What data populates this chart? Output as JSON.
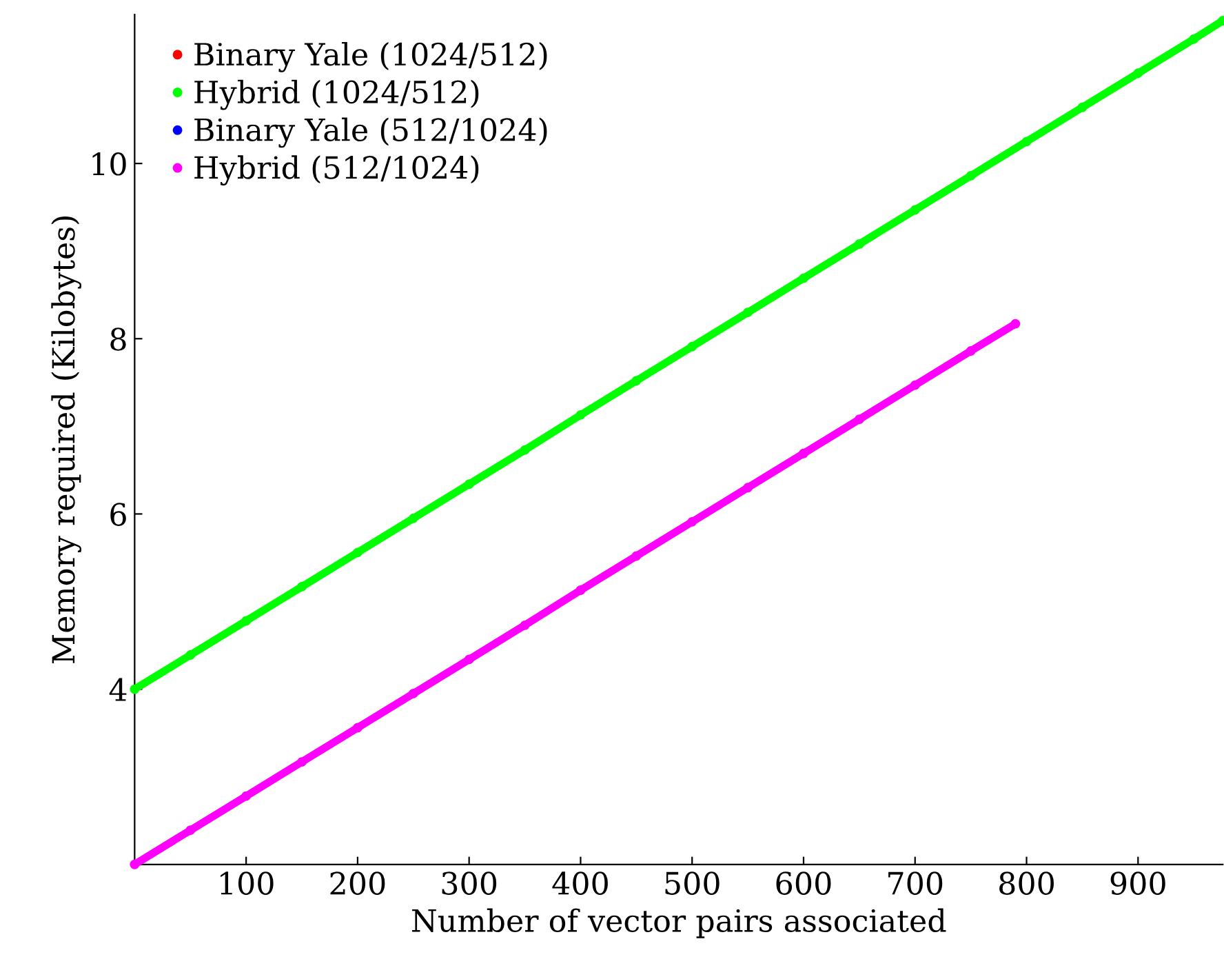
{
  "chart_data": {
    "type": "line",
    "xlabel": "Number of vector pairs associated",
    "ylabel": "Memory required (Kilobytes)",
    "xlim": [
      0,
      976
    ],
    "ylim": [
      2,
      11.7
    ],
    "xticks": [
      100,
      200,
      300,
      400,
      500,
      600,
      700,
      800,
      900
    ],
    "yticks": [
      4,
      6,
      8,
      10
    ],
    "grid": false,
    "legend": "top left",
    "marker": "circle",
    "line_style": "solid",
    "series": [
      {
        "name": "Binary Yale (1024/512)",
        "color": "#ff0000"
      },
      {
        "name": "Hybrid (1024/512)",
        "color": "#00ff00",
        "x": [
          0,
          50,
          100,
          150,
          200,
          250,
          300,
          350,
          400,
          450,
          500,
          550,
          600,
          650,
          700,
          750,
          800,
          850,
          900,
          950,
          976
        ],
        "values": [
          4.0,
          4.39,
          4.78,
          5.17,
          5.56,
          5.95,
          6.34,
          6.73,
          7.13,
          7.52,
          7.91,
          8.3,
          8.69,
          9.08,
          9.47,
          9.86,
          10.25,
          10.64,
          11.03,
          11.42,
          11.63
        ]
      },
      {
        "name": "Binary Yale (512/1024)",
        "color": "#0000ff"
      },
      {
        "name": "Hybrid (512/1024)",
        "color": "#ff00ff",
        "x": [
          0,
          50,
          100,
          150,
          200,
          250,
          300,
          350,
          400,
          450,
          500,
          550,
          600,
          650,
          700,
          750,
          790
        ],
        "values": [
          2.0,
          2.39,
          2.78,
          3.17,
          3.56,
          3.95,
          4.34,
          4.73,
          5.13,
          5.52,
          5.91,
          6.3,
          6.69,
          7.08,
          7.47,
          7.86,
          8.17
        ]
      }
    ]
  }
}
